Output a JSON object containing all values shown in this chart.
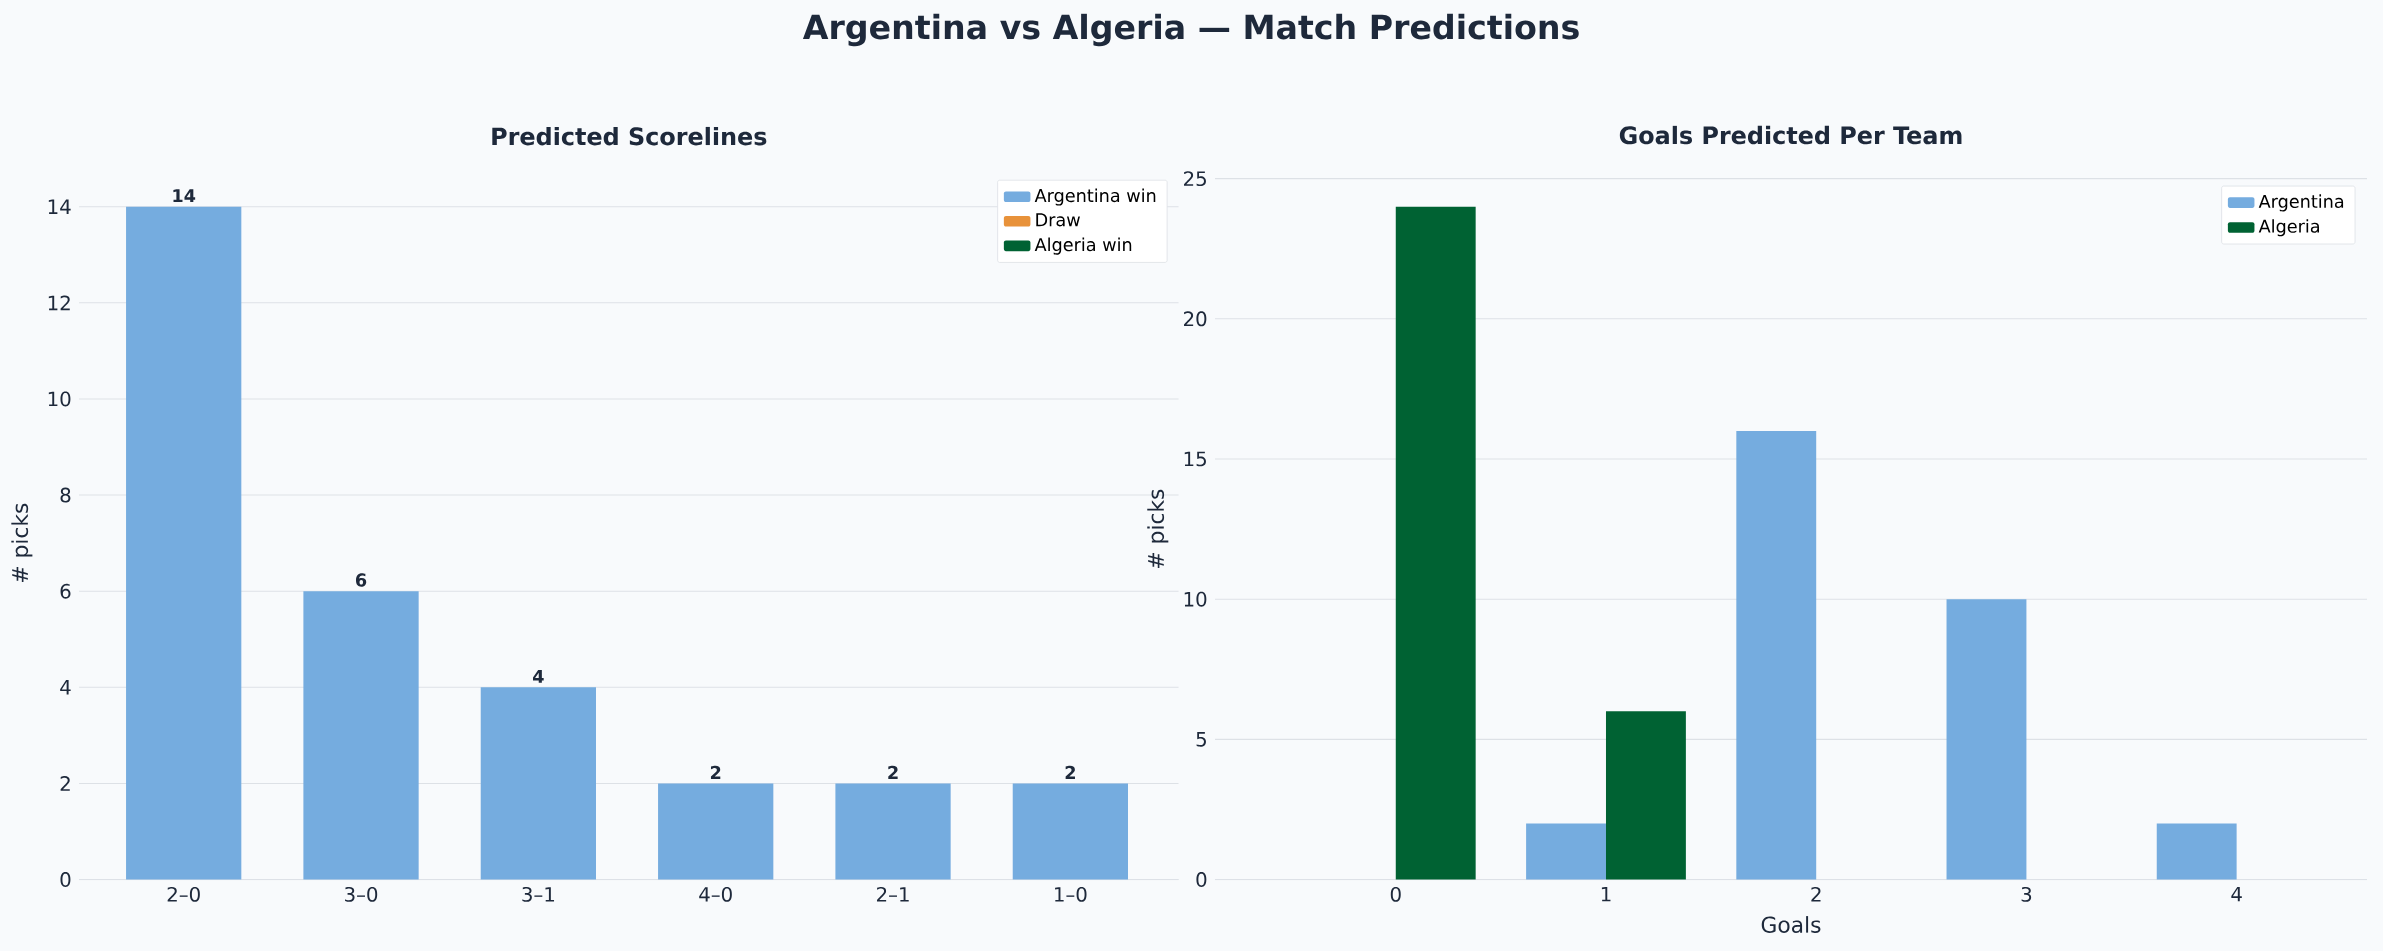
{
  "chart_data": [
    {
      "type": "bar",
      "title": "Argentina vs Algeria  —  Match Predictions",
      "subtitle": "Predicted Scorelines",
      "ylabel": "# picks",
      "categories": [
        "2–0",
        "3–0",
        "3–1",
        "4–0",
        "2–1",
        "1–0"
      ],
      "series": [
        {
          "name": "Argentina win",
          "color": "#75acdf",
          "values": [
            14,
            6,
            4,
            2,
            2,
            2
          ]
        },
        {
          "name": "Draw",
          "color": "#e8923a",
          "values": [
            null,
            null,
            null,
            null,
            null,
            null
          ]
        },
        {
          "name": "Algeria win",
          "color": "#006233",
          "values": [
            null,
            null,
            null,
            null,
            null,
            null
          ]
        }
      ],
      "ylim": [
        0,
        14
      ],
      "yticks": [
        0,
        2,
        4,
        6,
        8,
        10,
        12,
        14
      ],
      "grid": "y",
      "legend": "top right",
      "data_labels": true
    },
    {
      "type": "bar",
      "title": "Goals Predicted Per Team",
      "xlabel": "Goals",
      "ylabel": "# picks",
      "categories": [
        "0",
        "1",
        "2",
        "3",
        "4"
      ],
      "series": [
        {
          "name": "Argentina",
          "color": "#75acdf",
          "values": [
            0,
            2,
            16,
            10,
            2
          ]
        },
        {
          "name": "Algeria",
          "color": "#006233",
          "values": [
            24,
            6,
            0,
            0,
            0
          ]
        }
      ],
      "ylim": [
        0,
        25
      ],
      "yticks": [
        0,
        5,
        10,
        15,
        20,
        25
      ],
      "grid": "y",
      "legend": "top right"
    }
  ]
}
